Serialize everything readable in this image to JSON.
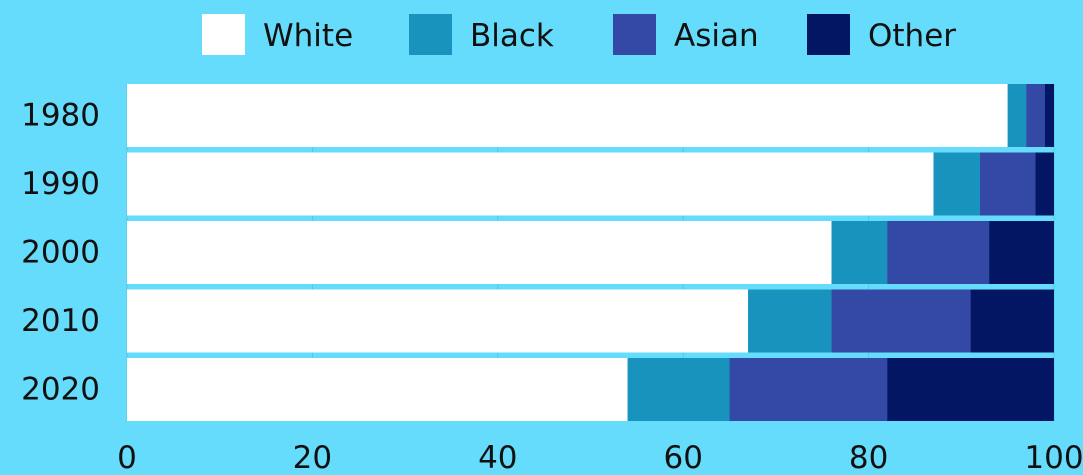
{
  "chart_data": {
    "type": "bar",
    "orientation": "horizontal",
    "stacked": true,
    "title": "",
    "xlabel": "",
    "ylabel": "",
    "categories": [
      "1980",
      "1990",
      "2000",
      "2010",
      "2020"
    ],
    "xlim": [
      0,
      100
    ],
    "x_ticks": [
      "0",
      "20",
      "40",
      "60",
      "80",
      "100"
    ],
    "grid": true,
    "legend_position": "top",
    "series": [
      {
        "name": "White",
        "color": "#ffffff",
        "values": [
          95,
          87,
          76,
          67,
          54
        ]
      },
      {
        "name": "Black",
        "color": "#1793be",
        "values": [
          2,
          5,
          6,
          9,
          11
        ]
      },
      {
        "name": "Asian",
        "color": "#3449a5",
        "values": [
          2,
          6,
          11,
          15,
          17
        ]
      },
      {
        "name": "Other",
        "color": "#031663",
        "values": [
          1,
          2,
          7,
          9,
          18
        ]
      }
    ]
  }
}
